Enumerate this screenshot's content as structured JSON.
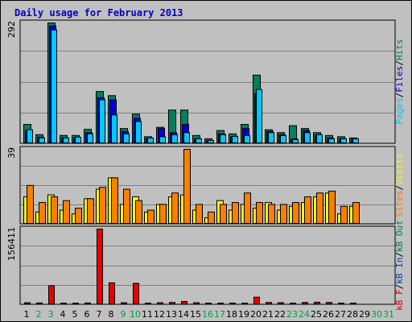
{
  "title": "Daily usage for February 2013",
  "colors": {
    "hits": "#00805c",
    "files": "#0000d8",
    "pages": "#00c8f8",
    "visits": "#f8f800",
    "sites": "#f88000",
    "kb_out": "#008040",
    "kb_in": "#0040c0",
    "kb_f": "#e80000",
    "weekend_label": "#00a040",
    "weekday_label": "#000000",
    "title": "#0000c8",
    "background": "#c0c0c0"
  },
  "chart_data": [
    {
      "type": "bar",
      "panel": "hits_files_pages",
      "y_max_label": "292",
      "ylim": [
        0,
        292
      ],
      "legend": [
        "Pages",
        "Files",
        "Hits"
      ],
      "categories": [
        "1",
        "2",
        "3",
        "4",
        "5",
        "6",
        "7",
        "8",
        "9",
        "10",
        "11",
        "12",
        "13",
        "14",
        "15",
        "16",
        "17",
        "18",
        "19",
        "20",
        "21",
        "22",
        "23",
        "24",
        "25",
        "26",
        "27",
        "28"
      ],
      "series": [
        {
          "name": "Hits",
          "values": [
            45,
            20,
            292,
            18,
            18,
            33,
            125,
            115,
            35,
            70,
            15,
            38,
            80,
            80,
            18,
            10,
            30,
            22,
            45,
            165,
            32,
            25,
            42,
            35,
            25,
            18,
            15,
            12
          ]
        },
        {
          "name": "Files",
          "values": [
            30,
            14,
            285,
            12,
            12,
            25,
            110,
            105,
            28,
            60,
            10,
            35,
            25,
            45,
            10,
            5,
            22,
            15,
            35,
            120,
            28,
            20,
            10,
            30,
            20,
            12,
            10,
            10
          ]
        },
        {
          "name": "Pages",
          "values": [
            32,
            12,
            275,
            12,
            14,
            22,
            105,
            68,
            22,
            52,
            12,
            15,
            20,
            25,
            10,
            6,
            20,
            16,
            18,
            130,
            25,
            18,
            8,
            25,
            20,
            10,
            10,
            10
          ]
        }
      ]
    },
    {
      "type": "bar",
      "panel": "visits_sites",
      "y_max_label": "39",
      "ylim": [
        0,
        39
      ],
      "legend": [
        "Sites",
        "Visits"
      ],
      "categories": [
        "1",
        "2",
        "3",
        "4",
        "5",
        "6",
        "7",
        "8",
        "9",
        "10",
        "11",
        "12",
        "13",
        "14",
        "15",
        "16",
        "17",
        "18",
        "19",
        "20",
        "21",
        "22",
        "23",
        "24",
        "25",
        "26",
        "27",
        "28"
      ],
      "series": [
        {
          "name": "Visits",
          "values": [
            14,
            6,
            15,
            7,
            5,
            13,
            18,
            24,
            10,
            14,
            6,
            10,
            14,
            15,
            7,
            3,
            12,
            7,
            10,
            8,
            11,
            7,
            9,
            11,
            14,
            16,
            5,
            9
          ]
        },
        {
          "name": "Sites",
          "values": [
            20,
            11,
            14,
            12,
            8,
            13,
            19,
            24,
            18,
            12,
            7,
            10,
            16,
            39,
            10,
            6,
            10,
            11,
            16,
            11,
            10,
            10,
            11,
            14,
            16,
            17,
            9,
            11
          ]
        }
      ]
    },
    {
      "type": "bar",
      "panel": "kbytes",
      "y_max_label": "156411",
      "ylim": [
        0,
        156411
      ],
      "legend": [
        "kB F",
        "kB In",
        "kB Out"
      ],
      "categories": [
        "1",
        "2",
        "3",
        "4",
        "5",
        "6",
        "7",
        "8",
        "9",
        "10",
        "11",
        "12",
        "13",
        "14",
        "15",
        "16",
        "17",
        "18",
        "19",
        "20",
        "21",
        "22",
        "23",
        "24",
        "25",
        "26",
        "27",
        "28"
      ],
      "series": [
        {
          "name": "kB F",
          "values": [
            2500,
            2000,
            38000,
            1500,
            1500,
            2000,
            156411,
            44000,
            2500,
            43000,
            1500,
            2500,
            3000,
            5000,
            2500,
            1500,
            1500,
            1500,
            1500,
            14000,
            3000,
            2500,
            1500,
            3000,
            3500,
            3000,
            1500,
            1500
          ]
        }
      ]
    }
  ],
  "x_axis": {
    "days": [
      "1",
      "2",
      "3",
      "4",
      "5",
      "6",
      "7",
      "8",
      "9",
      "10",
      "11",
      "12",
      "13",
      "14",
      "15",
      "16",
      "17",
      "18",
      "19",
      "20",
      "21",
      "22",
      "23",
      "24",
      "25",
      "26",
      "27",
      "28",
      "29",
      "30",
      "31"
    ],
    "weekend_days": [
      2,
      3,
      9,
      10,
      16,
      17,
      23,
      24,
      30,
      31
    ]
  },
  "side_labels": {
    "top": [
      {
        "text": "Pages",
        "color_key": "pages"
      },
      {
        "text": "/",
        "color_key": "weekday_label"
      },
      {
        "text": "Files",
        "color_key": "files"
      },
      {
        "text": "/",
        "color_key": "weekday_label"
      },
      {
        "text": "Hits",
        "color_key": "hits"
      }
    ],
    "middle": [
      {
        "text": "Sites",
        "color_key": "sites"
      },
      {
        "text": "/",
        "color_key": "weekday_label"
      },
      {
        "text": "Visits",
        "color_key": "visits"
      }
    ],
    "bottom": [
      {
        "text": "kB F",
        "color_key": "kb_f"
      },
      {
        "text": "/",
        "color_key": "weekday_label"
      },
      {
        "text": "kB In",
        "color_key": "kb_in"
      },
      {
        "text": "/",
        "color_key": "weekday_label"
      },
      {
        "text": "kB Out",
        "color_key": "kb_out"
      }
    ]
  }
}
